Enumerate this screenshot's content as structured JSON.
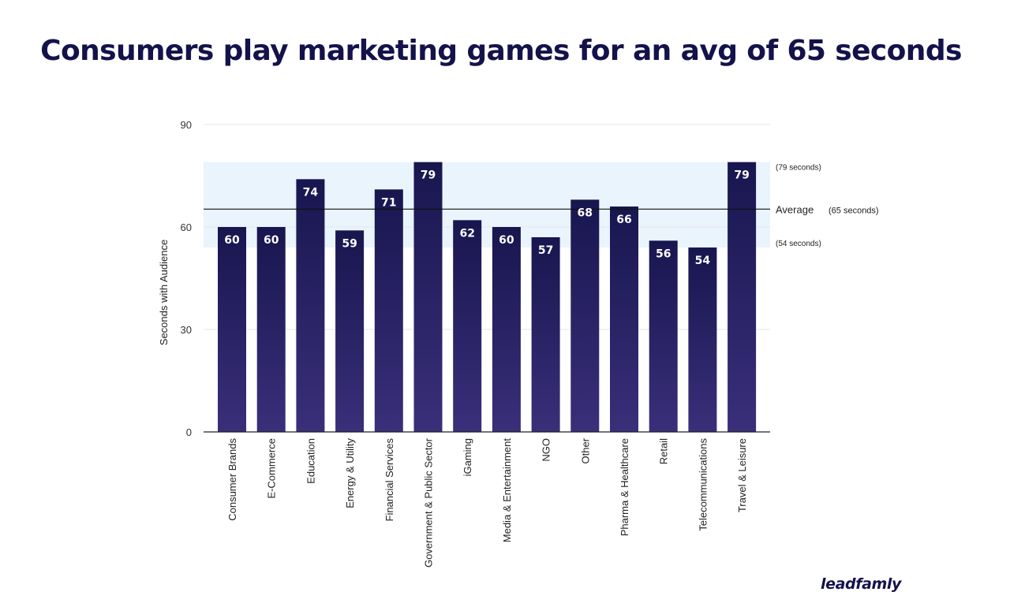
{
  "title": "Consumers play marketing games for an avg of 65 seconds",
  "brand": "leadfamly",
  "chart_data": {
    "type": "bar",
    "categories": [
      "Consumer Brands",
      "E-Commerce",
      "Education",
      "Energy & Utility",
      "Financial Services",
      "Government & Public Sector",
      "iGaming",
      "Media & Entertainment",
      "NGO",
      "Other",
      "Pharma & Healthcare",
      "Retail",
      "Telecommunications",
      "Travel & Leisure"
    ],
    "values": [
      60,
      60,
      74,
      59,
      71,
      79,
      62,
      60,
      57,
      68,
      66,
      56,
      54,
      79
    ],
    "ylabel": "Seconds with Audience",
    "ylim": [
      0,
      90
    ],
    "yticks": [
      0,
      30,
      60,
      90
    ],
    "grid": true,
    "average": {
      "value": 65,
      "label": "Average",
      "value_label": "(65 seconds)"
    },
    "range_band": {
      "low": 54,
      "high": 79,
      "low_label": "(54 seconds)",
      "high_label": "(79 seconds)"
    },
    "colors": {
      "bar_top": "#18164f",
      "bar_bottom": "#3a2f7a",
      "band": "#eaf4fd",
      "title": "#14124a",
      "axis_text": "#333333",
      "grid": "#e6e6e6"
    }
  }
}
